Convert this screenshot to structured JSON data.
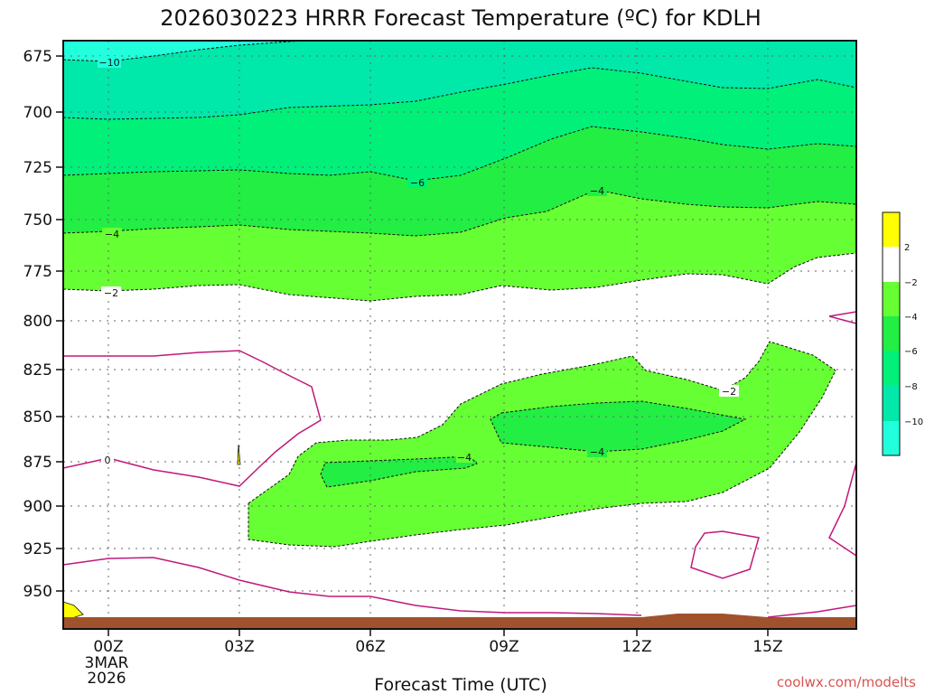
{
  "chart_data": {
    "type": "contour",
    "title": "2026030223 HRRR Forecast Temperature (ºC) for KDLH",
    "xlabel": "Forecast Time (UTC)",
    "x_ticks": [
      "00Z",
      "03Z",
      "06Z",
      "09Z",
      "12Z",
      "15Z"
    ],
    "x_date_line1": "3MAR",
    "x_date_line2": "2026",
    "y_ticks": [
      "675",
      "700",
      "725",
      "750",
      "775",
      "800",
      "825",
      "850",
      "875",
      "900",
      "925",
      "950"
    ],
    "xlim_hours": [
      -0.6,
      17.5
    ],
    "pressure_axis": "reversed-log",
    "contour_levels": [
      2,
      0,
      -2,
      -4,
      -6,
      -8,
      -10
    ],
    "colorbar": {
      "labels": [
        "2",
        "−2",
        "−4",
        "−6",
        "−8",
        "−10"
      ],
      "colors": [
        "#ffff00",
        "#ffffff",
        "#66ff33",
        "#22ee44",
        "#00f07a",
        "#00e8aa",
        "#22ffdd"
      ]
    },
    "contour_labels": [
      {
        "text": "−10"
      },
      {
        "text": "−6"
      },
      {
        "text": "−4"
      },
      {
        "text": "−4"
      },
      {
        "text": "−2"
      },
      {
        "text": "0"
      },
      {
        "text": "−4"
      },
      {
        "text": "−4"
      },
      {
        "text": "−2"
      }
    ],
    "ground_color": "#a0522d",
    "grid": true
  },
  "credit": "coolwx.com/modelts"
}
